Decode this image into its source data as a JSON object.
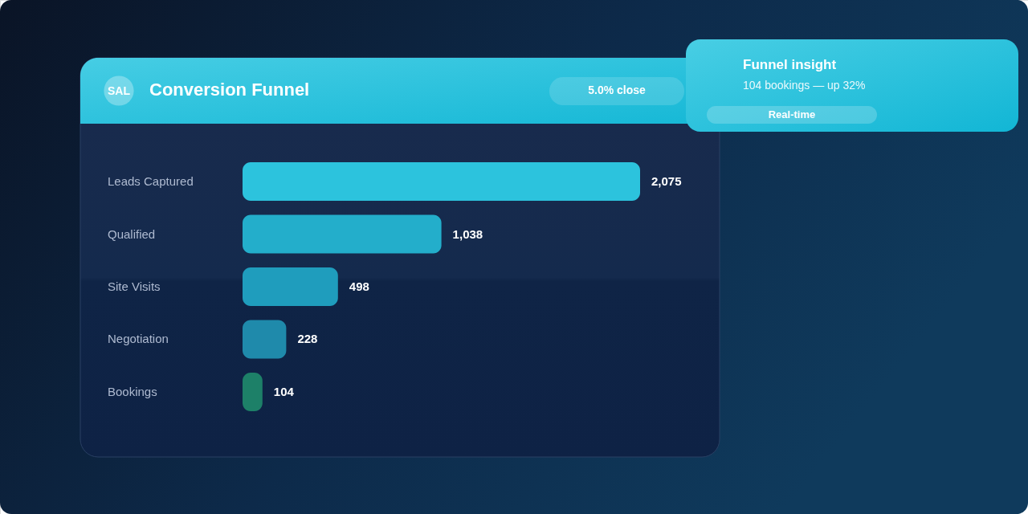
{
  "chart_data": {
    "type": "bar",
    "orientation": "horizontal",
    "title": "Conversion Funnel",
    "categories": [
      "Leads Captured",
      "Qualified",
      "Site Visits",
      "Negotiation",
      "Bookings"
    ],
    "values": [
      2075,
      1038,
      498,
      228,
      104
    ],
    "value_labels": [
      "2,075",
      "1,038",
      "498",
      "228",
      "104"
    ],
    "colors": [
      "#2cc3dd",
      "#23aecb",
      "#1f9dbd",
      "#1f8aab",
      "#1d8068"
    ],
    "tick_labels": "y",
    "annotations": [
      "SAL",
      "5.0% close",
      "Funnel insight",
      "104 bookings — up 32%",
      "Real-time"
    ]
  }
}
